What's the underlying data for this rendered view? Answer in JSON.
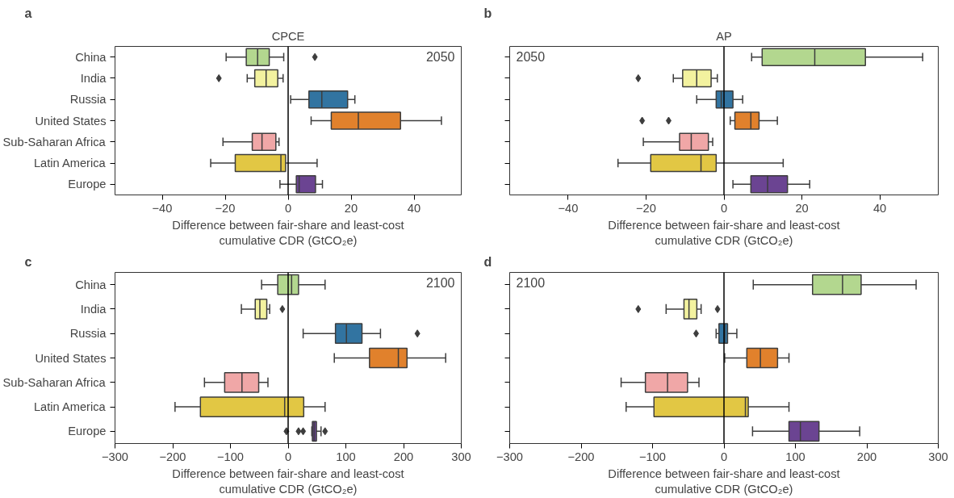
{
  "chart_data": [
    {
      "type": "box",
      "title": "CPCE",
      "xlabel": "Difference between fair-share and least-cost cumulative CDR (GtCO₂e)",
      "orientation": "horizontal",
      "marker": "diamond",
      "categories": [
        "China",
        "India",
        "Russia",
        "United States",
        "Sub-Saharan Africa",
        "Latin America",
        "Europe"
      ],
      "colors": [
        "#b3d78f",
        "#f3f29f",
        "#3274a1",
        "#e1812c",
        "#f0a7a7",
        "#e2c744",
        "#6b4492"
      ],
      "boxes": [
        {
          "low": -19.7,
          "q1": -13.3,
          "median": -9.7,
          "q3": -6.0,
          "high": -1.4,
          "outliers": [
            8.5
          ]
        },
        {
          "low": -13,
          "q1": -10.6,
          "median": -7.0,
          "q3": -3.3,
          "high": -1.6,
          "outliers": [
            -22
          ]
        },
        {
          "low": 0.8,
          "q1": 6.6,
          "median": 10.7,
          "q3": 18.9,
          "high": 21.2
        },
        {
          "low": 7.3,
          "q1": 13.7,
          "median": 22.3,
          "q3": 35.7,
          "high": 48.7
        },
        {
          "low": -20.7,
          "q1": -11.4,
          "median": -8.3,
          "q3": -3.9,
          "high": -2.9
        },
        {
          "low": -24.6,
          "q1": -16.8,
          "median": -2.3,
          "q3": -0.8,
          "high": 9.2
        },
        {
          "low": -2.6,
          "q1": 2.6,
          "median": 3.5,
          "q3": 8.7,
          "high": 10.9
        }
      ],
      "xlim": [
        -55,
        55
      ],
      "xticks": [
        -40,
        -20,
        0,
        20,
        40
      ],
      "ref_lines": [
        {
          "axis": "x",
          "value": 0,
          "color": "#000000"
        }
      ],
      "annotations": [
        "a",
        "2050"
      ]
    },
    {
      "type": "box",
      "title": "AP",
      "xlabel": "Difference between fair-share and least-cost cumulative CDR (GtCO₂e)",
      "orientation": "horizontal",
      "marker": "diamond",
      "tick_labels": "x",
      "categories": [
        "China",
        "India",
        "Russia",
        "United States",
        "Sub-Saharan Africa",
        "Latin America",
        "Europe"
      ],
      "colors": [
        "#b3d78f",
        "#f3f29f",
        "#3274a1",
        "#e1812c",
        "#f0a7a7",
        "#e2c744",
        "#6b4492"
      ],
      "boxes": [
        {
          "low": 7.1,
          "q1": 9.8,
          "median": 23.3,
          "q3": 36.3,
          "high": 51.0
        },
        {
          "low": -13,
          "q1": -10.6,
          "median": -7.0,
          "q3": -3.3,
          "high": -1.7,
          "outliers": [
            -22
          ]
        },
        {
          "low": -7.0,
          "q1": -2.0,
          "median": -0.7,
          "q3": 2.3,
          "high": 4.8
        },
        {
          "low": 1.6,
          "q1": 2.8,
          "median": 6.9,
          "q3": 9.0,
          "high": 13.7,
          "outliers": [
            -21,
            -14.2
          ]
        },
        {
          "low": -20.7,
          "q1": -11.4,
          "median": -8.4,
          "q3": -4.0,
          "high": -2.9
        },
        {
          "low": -27.2,
          "q1": -18.8,
          "median": -5.9,
          "q3": -2.0,
          "high": 15.2
        },
        {
          "low": 2.3,
          "q1": 6.9,
          "median": 11.2,
          "q3": 16.3,
          "high": 22.0
        }
      ],
      "xlim": [
        -55,
        55
      ],
      "xticks": [
        -40,
        -20,
        0,
        20,
        40
      ],
      "ref_lines": [
        {
          "axis": "x",
          "value": 0,
          "color": "#000000"
        }
      ],
      "annotations": [
        "b",
        "2050"
      ]
    },
    {
      "type": "box",
      "xlabel": "Difference between fair-share and least-cost cumulative CDR (GtCO₂e)",
      "orientation": "horizontal",
      "marker": "diamond",
      "categories": [
        "China",
        "India",
        "Russia",
        "United States",
        "Sub-Saharan Africa",
        "Latin America",
        "Europe"
      ],
      "colors": [
        "#b3d78f",
        "#f3f29f",
        "#3274a1",
        "#e1812c",
        "#f0a7a7",
        "#e2c744",
        "#6b4492"
      ],
      "boxes": [
        {
          "low": -46,
          "q1": -18,
          "median": 6,
          "q3": 18,
          "high": 64
        },
        {
          "low": -81,
          "q1": -57,
          "median": -49,
          "q3": -37,
          "high": -32,
          "outliers": [
            -10
          ]
        },
        {
          "low": 26,
          "q1": 82,
          "median": 101,
          "q3": 128,
          "high": 160,
          "outliers": [
            224
          ]
        },
        {
          "low": 80,
          "q1": 141,
          "median": 191,
          "q3": 206,
          "high": 273
        },
        {
          "low": -145,
          "q1": -110,
          "median": -80,
          "q3": -51,
          "high": -35
        },
        {
          "low": -196,
          "q1": -152,
          "median": -6,
          "q3": 27,
          "high": 64
        },
        {
          "low": 41,
          "q1": 42,
          "median": 45,
          "q3": 49,
          "high": 57,
          "outliers": [
            -3,
            18,
            26,
            64
          ]
        }
      ],
      "xlim": [
        -300,
        300
      ],
      "xticks": [
        -300,
        -200,
        -100,
        0,
        100,
        200,
        300
      ],
      "ref_lines": [
        {
          "axis": "x",
          "value": 0,
          "color": "#000000"
        }
      ],
      "annotations": [
        "c",
        "2100"
      ]
    },
    {
      "type": "box",
      "xlabel": "Difference between fair-share and least-cost cumulative CDR (GtCO₂e)",
      "orientation": "horizontal",
      "marker": "diamond",
      "tick_labels": "x",
      "categories": [
        "China",
        "India",
        "Russia",
        "United States",
        "Sub-Saharan Africa",
        "Latin America",
        "Europe"
      ],
      "colors": [
        "#b3d78f",
        "#f3f29f",
        "#3274a1",
        "#e1812c",
        "#f0a7a7",
        "#e2c744",
        "#6b4492"
      ],
      "boxes": [
        {
          "low": 41,
          "q1": 124,
          "median": 166,
          "q3": 192,
          "high": 269
        },
        {
          "low": -81,
          "q1": -56,
          "median": -49,
          "q3": -38,
          "high": -32,
          "outliers": [
            -120,
            -9
          ]
        },
        {
          "low": -11,
          "q1": -7,
          "median": 1,
          "q3": 5,
          "high": 18,
          "outliers": [
            -39
          ]
        },
        {
          "low": 1,
          "q1": 32,
          "median": 51,
          "q3": 75,
          "high": 91
        },
        {
          "low": -144,
          "q1": -110,
          "median": -79,
          "q3": -51,
          "high": -35
        },
        {
          "low": -137,
          "q1": -98,
          "median": 30,
          "q3": 34,
          "high": 91
        },
        {
          "low": 40,
          "q1": 91,
          "median": 107,
          "q3": 133,
          "high": 190
        }
      ],
      "xlim": [
        -300,
        300
      ],
      "xticks": [
        -300,
        -200,
        -100,
        0,
        100,
        200,
        300
      ],
      "ref_lines": [
        {
          "axis": "x",
          "value": 0,
          "color": "#000000"
        }
      ],
      "annotations": [
        "d",
        "2100"
      ]
    }
  ]
}
